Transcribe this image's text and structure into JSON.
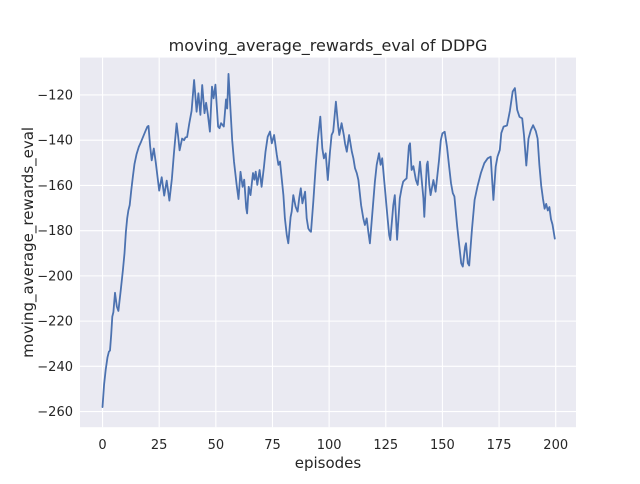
{
  "window": {
    "title": "moving_average_rewards_eval of DDPG"
  },
  "chart_data": {
    "type": "line",
    "title": "moving_average_rewards_eval of DDPG",
    "xlabel": "episodes",
    "ylabel": "moving_average_rewards_eval",
    "xlim": [
      -9.95,
      208.95
    ],
    "ylim": [
      -266.9,
      -103.5
    ],
    "xticks": [
      0,
      25,
      50,
      75,
      100,
      125,
      150,
      175,
      200
    ],
    "yticks": [
      -260,
      -240,
      -220,
      -200,
      -180,
      -160,
      -140,
      -120
    ],
    "grid": true,
    "legend_position": "none",
    "styles": {
      "figure_bg": "#ffffff",
      "axes_bg": "#eaeaf2",
      "grid_color": "#ffffff",
      "line_color": "#4c72b0",
      "text_color": "#262626"
    },
    "series": [
      {
        "name": "moving_average_rewards_eval",
        "color": "#4c72b0",
        "points": [
          [
            0,
            -258
          ],
          [
            0.7,
            -248
          ],
          [
            1.4,
            -241.5
          ],
          [
            2.2,
            -236
          ],
          [
            2.8,
            -233.5
          ],
          [
            3.3,
            -233
          ],
          [
            3.8,
            -226
          ],
          [
            4.3,
            -218
          ],
          [
            4.8,
            -216
          ],
          [
            5.5,
            -207.5
          ],
          [
            6.3,
            -213.5
          ],
          [
            7,
            -215.5
          ],
          [
            8,
            -206.5
          ],
          [
            9,
            -197.5
          ],
          [
            9.7,
            -190
          ],
          [
            10.3,
            -180.5
          ],
          [
            10.9,
            -174.5
          ],
          [
            11.4,
            -171
          ],
          [
            12,
            -168.7
          ],
          [
            12.7,
            -162
          ],
          [
            13.4,
            -156
          ],
          [
            14.1,
            -150.5
          ],
          [
            15,
            -146.3
          ],
          [
            16,
            -143
          ],
          [
            17,
            -140.7
          ],
          [
            18,
            -138.3
          ],
          [
            19,
            -135.8
          ],
          [
            19.8,
            -134
          ],
          [
            20.3,
            -133.7
          ],
          [
            21,
            -142.5
          ],
          [
            21.7,
            -148.9
          ],
          [
            22.6,
            -143.7
          ],
          [
            23.5,
            -150
          ],
          [
            24.3,
            -156.5
          ],
          [
            25,
            -162.3
          ],
          [
            26.1,
            -156.4
          ],
          [
            27.2,
            -164.5
          ],
          [
            28.3,
            -157.9
          ],
          [
            29.5,
            -166.7
          ],
          [
            30.6,
            -157
          ],
          [
            31.5,
            -146
          ],
          [
            32.7,
            -132.6
          ],
          [
            33.4,
            -138.5
          ],
          [
            34,
            -144.5
          ],
          [
            35.1,
            -139.3
          ],
          [
            36,
            -140
          ],
          [
            36.6,
            -138.8
          ],
          [
            37.3,
            -138.6
          ],
          [
            38.3,
            -132.6
          ],
          [
            39.3,
            -127
          ],
          [
            40.4,
            -113.4
          ],
          [
            41.5,
            -127.4
          ],
          [
            42.3,
            -119.3
          ],
          [
            43.2,
            -128.8
          ],
          [
            44,
            -115.6
          ],
          [
            45,
            -128.1
          ],
          [
            45.7,
            -123.5
          ],
          [
            46.5,
            -128.8
          ],
          [
            47.4,
            -136.2
          ],
          [
            48.3,
            -116.3
          ],
          [
            49,
            -121.5
          ],
          [
            49.8,
            -115.5
          ],
          [
            51,
            -134
          ],
          [
            51.6,
            -134.7
          ],
          [
            52.3,
            -132.5
          ],
          [
            53.5,
            -134
          ],
          [
            54.5,
            -122
          ],
          [
            55,
            -126
          ],
          [
            55.6,
            -110.7
          ],
          [
            56.6,
            -129
          ],
          [
            57.2,
            -140
          ],
          [
            58,
            -149.5
          ],
          [
            59.2,
            -160
          ],
          [
            60,
            -166
          ],
          [
            60.9,
            -154
          ],
          [
            61.8,
            -160.6
          ],
          [
            62.5,
            -157.5
          ],
          [
            63.4,
            -170
          ],
          [
            63.8,
            -172.4
          ],
          [
            64.5,
            -160.6
          ],
          [
            65.3,
            -164.3
          ],
          [
            66.4,
            -154.5
          ],
          [
            67,
            -157.5
          ],
          [
            67.6,
            -153.9
          ],
          [
            68.3,
            -159.8
          ],
          [
            69.3,
            -153.2
          ],
          [
            70.2,
            -160.6
          ],
          [
            71.2,
            -152
          ],
          [
            71.9,
            -145.1
          ],
          [
            72.9,
            -138.5
          ],
          [
            73.9,
            -136.2
          ],
          [
            74.7,
            -141.4
          ],
          [
            75.7,
            -137.7
          ],
          [
            76.9,
            -146.5
          ],
          [
            77.6,
            -150.9
          ],
          [
            78.3,
            -149.5
          ],
          [
            79.8,
            -164.3
          ],
          [
            80.5,
            -174.6
          ],
          [
            81.3,
            -182
          ],
          [
            82,
            -185.6
          ],
          [
            83,
            -174
          ],
          [
            83.5,
            -171.6
          ],
          [
            84.2,
            -164.3
          ],
          [
            85.2,
            -169.4
          ],
          [
            86.1,
            -171.6
          ],
          [
            86.8,
            -165.7
          ],
          [
            87.5,
            -161.3
          ],
          [
            88.2,
            -167.9
          ],
          [
            89.4,
            -162.8
          ],
          [
            90.1,
            -174.6
          ],
          [
            90.8,
            -179
          ],
          [
            91.4,
            -180
          ],
          [
            92,
            -180.5
          ],
          [
            93,
            -167.2
          ],
          [
            94.1,
            -150.9
          ],
          [
            95,
            -139.9
          ],
          [
            96.1,
            -129.6
          ],
          [
            97,
            -143.6
          ],
          [
            97.7,
            -148
          ],
          [
            98.5,
            -145.8
          ],
          [
            99.4,
            -157.6
          ],
          [
            100.4,
            -145.1
          ],
          [
            101.1,
            -137.7
          ],
          [
            101.8,
            -136.2
          ],
          [
            103,
            -123
          ],
          [
            104,
            -134
          ],
          [
            104.5,
            -137.7
          ],
          [
            105.5,
            -132.5
          ],
          [
            106.5,
            -138
          ],
          [
            107,
            -141.4
          ],
          [
            107.8,
            -145.1
          ],
          [
            108.8,
            -137.7
          ],
          [
            110,
            -145
          ],
          [
            110.7,
            -148
          ],
          [
            111.4,
            -152.4
          ],
          [
            112.2,
            -154.6
          ],
          [
            112.9,
            -157.6
          ],
          [
            114.1,
            -168.7
          ],
          [
            115.1,
            -174.6
          ],
          [
            115.8,
            -177.5
          ],
          [
            116.6,
            -174.6
          ],
          [
            117.3,
            -180.5
          ],
          [
            118,
            -185.6
          ],
          [
            119,
            -173.1
          ],
          [
            120.2,
            -158.3
          ],
          [
            121,
            -150.9
          ],
          [
            122,
            -145.8
          ],
          [
            122.7,
            -150.9
          ],
          [
            123.4,
            -148
          ],
          [
            124.6,
            -161.3
          ],
          [
            125.8,
            -174.6
          ],
          [
            126.5,
            -182
          ],
          [
            127,
            -184.2
          ],
          [
            128.3,
            -168.7
          ],
          [
            129,
            -164.3
          ],
          [
            130,
            -184
          ],
          [
            131.2,
            -165.7
          ],
          [
            132,
            -161.3
          ],
          [
            132.7,
            -158.3
          ],
          [
            133.5,
            -157.5
          ],
          [
            134.2,
            -156.9
          ],
          [
            135.2,
            -142.5
          ],
          [
            135.7,
            -141.4
          ],
          [
            136.4,
            -153.2
          ],
          [
            137.2,
            -151.5
          ],
          [
            138.3,
            -157.6
          ],
          [
            139.1,
            -159.8
          ],
          [
            140.1,
            -149.5
          ],
          [
            141.6,
            -165.7
          ],
          [
            142,
            -173.9
          ],
          [
            143.1,
            -150.9
          ],
          [
            143.5,
            -149.5
          ],
          [
            144.2,
            -159.8
          ],
          [
            144.8,
            -164.3
          ],
          [
            146,
            -157.6
          ],
          [
            147,
            -162.8
          ],
          [
            148.5,
            -148.9
          ],
          [
            149.3,
            -140
          ],
          [
            150,
            -137
          ],
          [
            151,
            -136.3
          ],
          [
            152,
            -143
          ],
          [
            153,
            -151.9
          ],
          [
            153.8,
            -159
          ],
          [
            154.6,
            -163.4
          ],
          [
            155.3,
            -164.9
          ],
          [
            156.5,
            -178.2
          ],
          [
            157.5,
            -187.1
          ],
          [
            158.3,
            -194.4
          ],
          [
            159,
            -195.9
          ],
          [
            160,
            -187.1
          ],
          [
            160.4,
            -185.6
          ],
          [
            161.2,
            -194.4
          ],
          [
            161.8,
            -195.4
          ],
          [
            163,
            -179.7
          ],
          [
            164.2,
            -166.4
          ],
          [
            165.5,
            -160.4
          ],
          [
            167,
            -154.5
          ],
          [
            168.5,
            -150.2
          ],
          [
            170,
            -148
          ],
          [
            171.3,
            -147.3
          ],
          [
            172.5,
            -166.4
          ],
          [
            173.5,
            -151.7
          ],
          [
            174.3,
            -147.3
          ],
          [
            175.3,
            -144.3
          ],
          [
            176,
            -136.9
          ],
          [
            177,
            -134
          ],
          [
            178.5,
            -133.5
          ],
          [
            179.8,
            -127
          ],
          [
            181,
            -118.5
          ],
          [
            182,
            -117
          ],
          [
            183,
            -126.6
          ],
          [
            184,
            -129.7
          ],
          [
            185.2,
            -130.4
          ],
          [
            186,
            -137.8
          ],
          [
            187,
            -151.2
          ],
          [
            188,
            -139.3
          ],
          [
            189,
            -135.6
          ],
          [
            190,
            -133.4
          ],
          [
            191.2,
            -136
          ],
          [
            192,
            -139.3
          ],
          [
            192.8,
            -151.1
          ],
          [
            193.6,
            -160.1
          ],
          [
            194.4,
            -166
          ],
          [
            195.1,
            -170.3
          ],
          [
            195.8,
            -168.2
          ],
          [
            196.5,
            -171.1
          ],
          [
            197.2,
            -169.6
          ],
          [
            197.9,
            -175
          ],
          [
            198.6,
            -177.3
          ],
          [
            199.6,
            -183.5
          ]
        ]
      }
    ]
  }
}
